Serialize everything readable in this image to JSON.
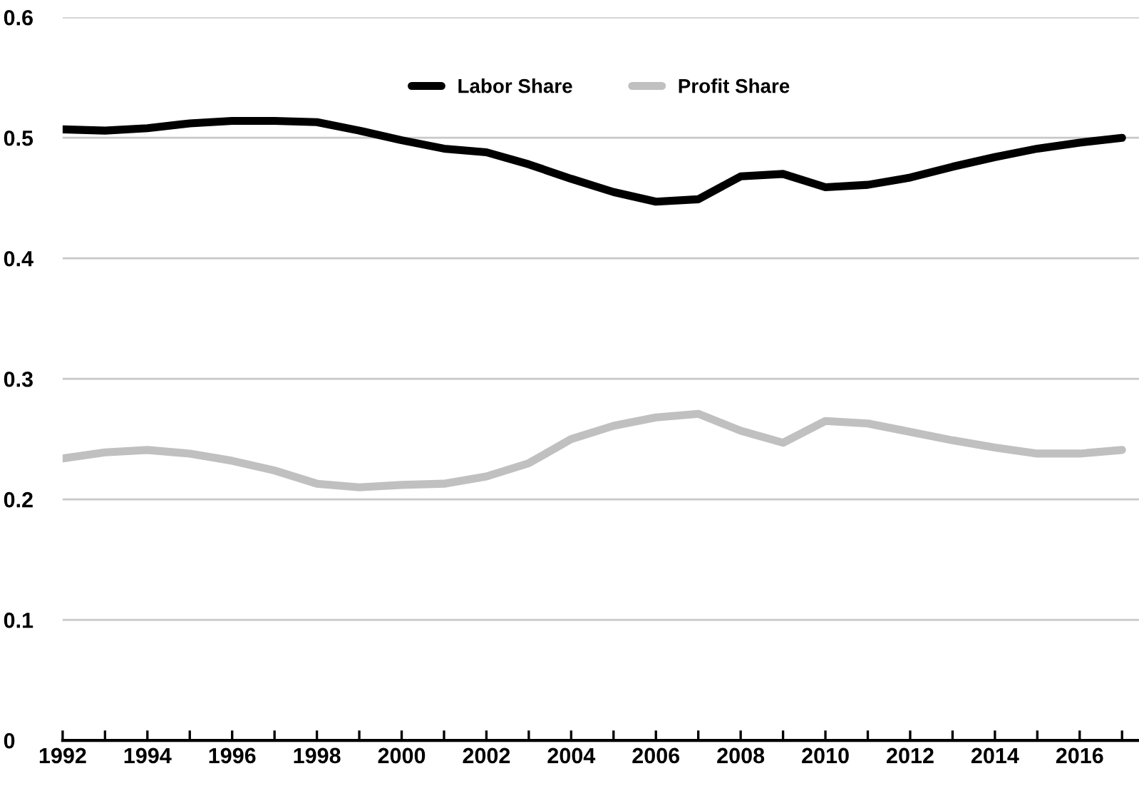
{
  "chart_data": {
    "type": "line",
    "x": [
      1992,
      1993,
      1994,
      1995,
      1996,
      1997,
      1998,
      1999,
      2000,
      2001,
      2002,
      2003,
      2004,
      2005,
      2006,
      2007,
      2008,
      2009,
      2010,
      2011,
      2012,
      2013,
      2014,
      2015,
      2016,
      2017
    ],
    "series": [
      {
        "name": "Labor Share",
        "color": "#000000",
        "values": [
          0.507,
          0.506,
          0.508,
          0.512,
          0.514,
          0.514,
          0.513,
          0.506,
          0.498,
          0.491,
          0.488,
          0.478,
          0.466,
          0.455,
          0.447,
          0.449,
          0.468,
          0.47,
          0.459,
          0.461,
          0.467,
          0.476,
          0.484,
          0.491,
          0.496,
          0.5
        ]
      },
      {
        "name": "Profit Share",
        "color": "#c0c0c0",
        "values": [
          0.234,
          0.239,
          0.241,
          0.238,
          0.232,
          0.224,
          0.213,
          0.21,
          0.212,
          0.213,
          0.219,
          0.23,
          0.25,
          0.261,
          0.268,
          0.271,
          0.257,
          0.247,
          0.265,
          0.263,
          0.256,
          0.249,
          0.243,
          0.238,
          0.238,
          0.241
        ]
      }
    ],
    "xlim": [
      1992,
      2017.4
    ],
    "xticks": [
      1992,
      1994,
      1996,
      1998,
      2000,
      2002,
      2004,
      2006,
      2008,
      2010,
      2012,
      2014,
      2016
    ],
    "ylim": [
      0,
      0.6
    ],
    "yticks": [
      0,
      0.1,
      0.2,
      0.3,
      0.4,
      0.5,
      0.6
    ],
    "grid": "y",
    "legend": "top",
    "marker": "none",
    "line_style": "solid"
  }
}
